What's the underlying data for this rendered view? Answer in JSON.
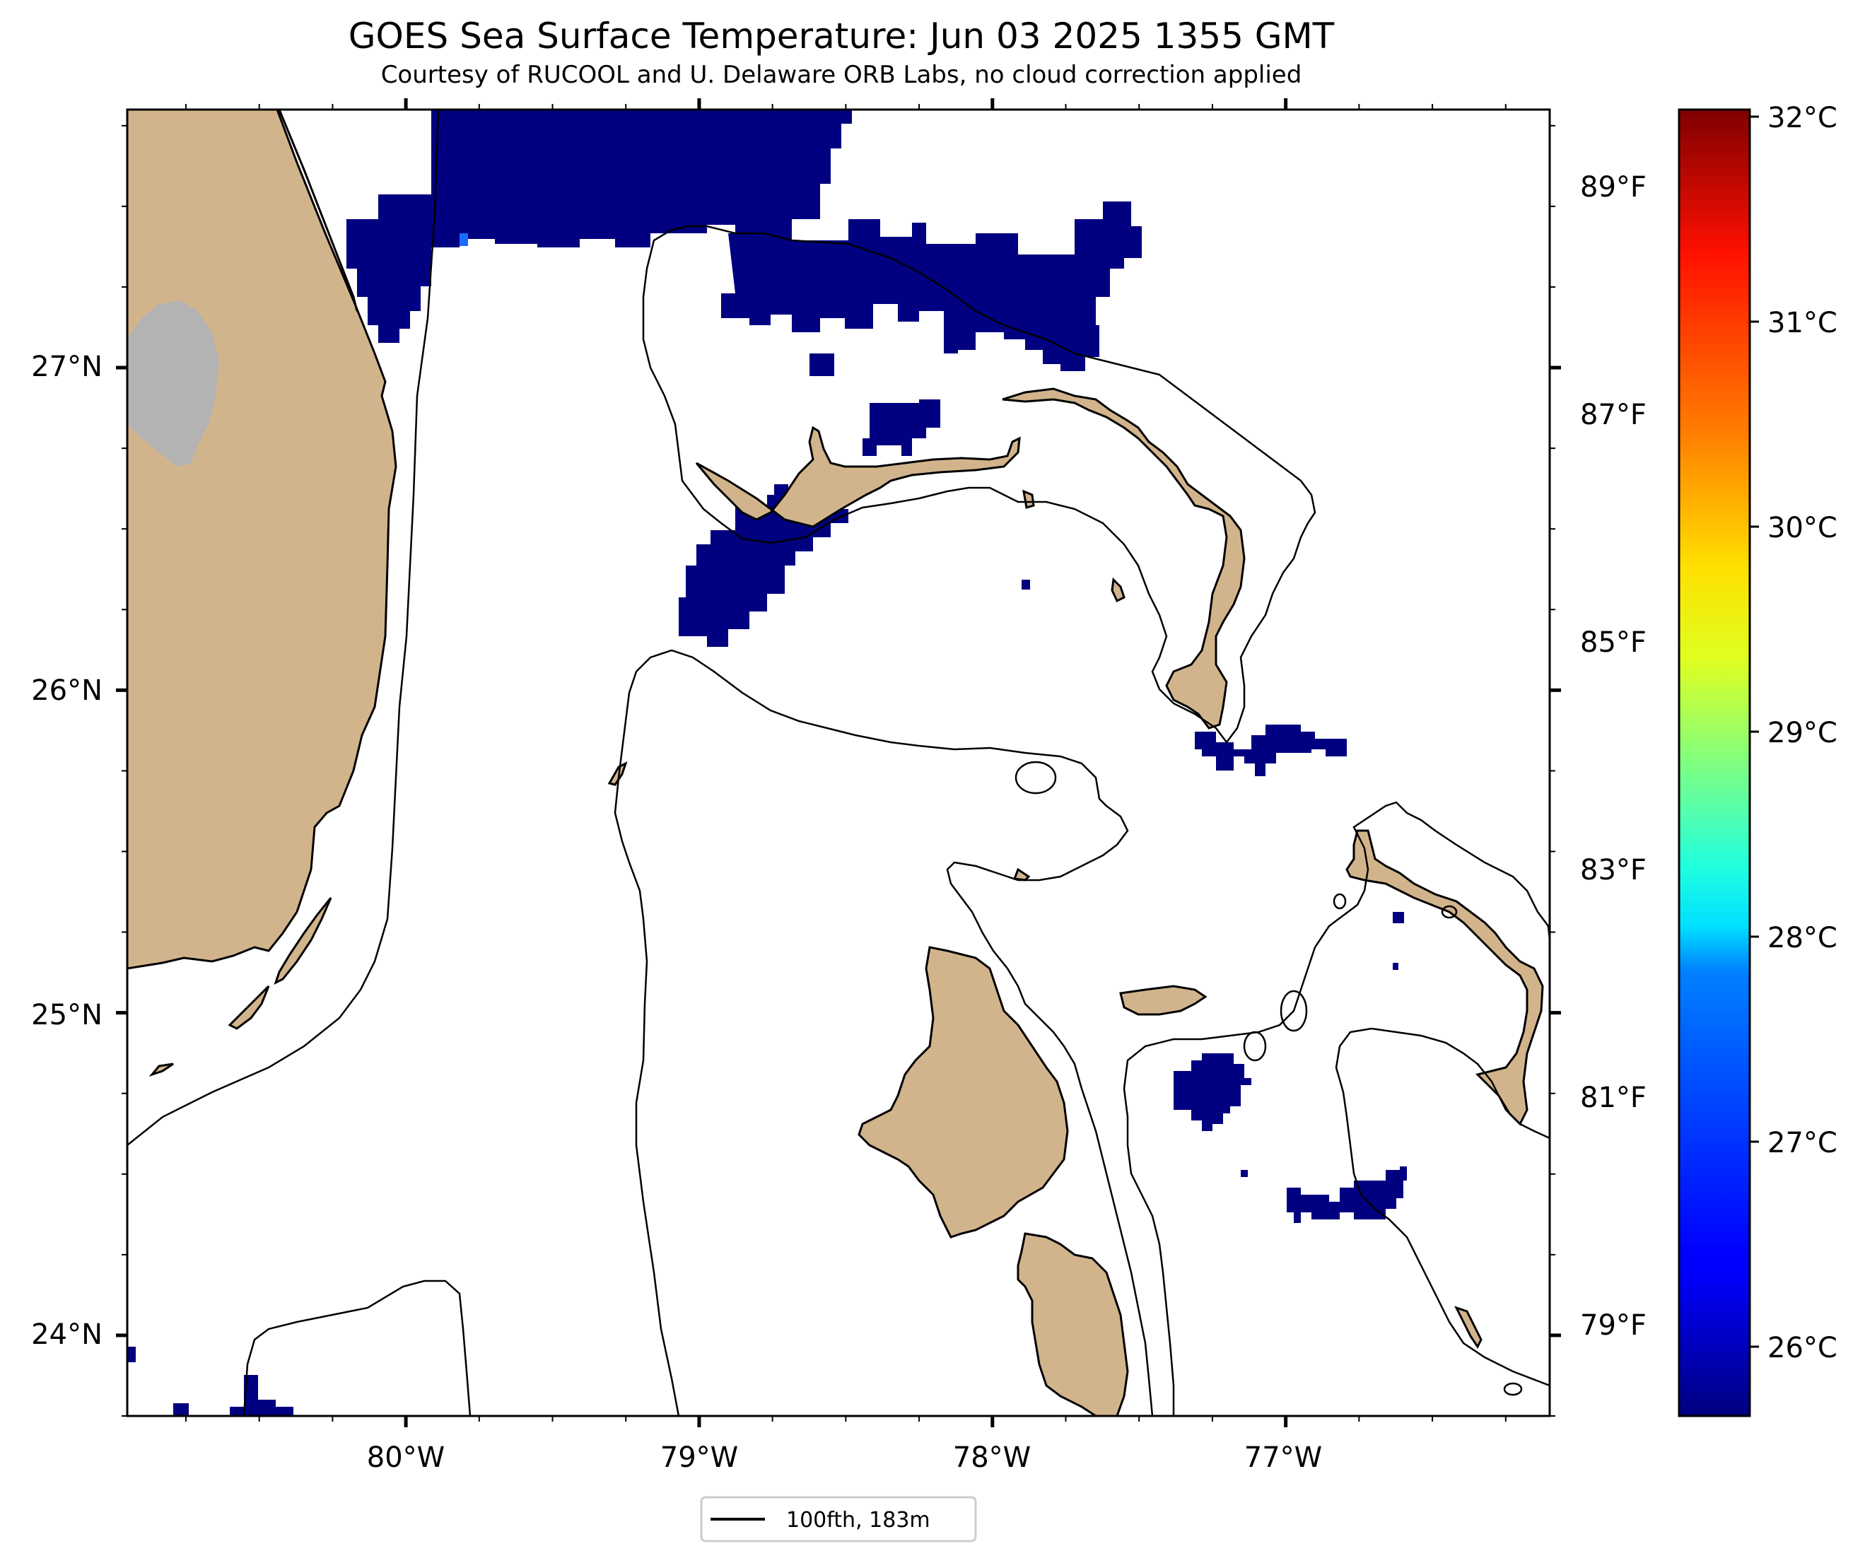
{
  "title": "GOES Sea Surface Temperature: Jun 03 2025 1355 GMT",
  "subtitle": "Courtesy of RUCOOL and U. Delaware ORB Labs, no cloud correction applied",
  "map": {
    "extent": {
      "lon_min": -80.95,
      "lon_max": -76.1,
      "lat_min": 23.75,
      "lat_max": 27.8
    },
    "lon_ticks": [
      {
        "lon": -80,
        "label": "80°W"
      },
      {
        "lon": -79,
        "label": "79°W"
      },
      {
        "lon": -78,
        "label": "78°W"
      },
      {
        "lon": -77,
        "label": "77°W"
      }
    ],
    "lat_ticks": [
      {
        "lat": 27,
        "label": "27°N"
      },
      {
        "lat": 26,
        "label": "26°N"
      },
      {
        "lat": 25,
        "label": "25°N"
      },
      {
        "lat": 24,
        "label": "24°N"
      }
    ],
    "land_color": "#d2b48c",
    "nodata_color": "#b3b3b3",
    "cold_sst_color": "#000080"
  },
  "colorbar": {
    "celsius": [
      {
        "value": 32,
        "label": "32°C"
      },
      {
        "value": 31,
        "label": "31°C"
      },
      {
        "value": 30,
        "label": "30°C"
      },
      {
        "value": 29,
        "label": "29°C"
      },
      {
        "value": 28,
        "label": "28°C"
      },
      {
        "value": 27,
        "label": "27°C"
      },
      {
        "value": 26,
        "label": "26°C"
      }
    ],
    "fahrenheit": [
      {
        "value": 89,
        "label": "89°F"
      },
      {
        "value": 87,
        "label": "87°F"
      },
      {
        "value": 85,
        "label": "85°F"
      },
      {
        "value": 83,
        "label": "83°F"
      },
      {
        "value": 81,
        "label": "81°F"
      },
      {
        "value": 79,
        "label": "79°F"
      }
    ],
    "min_c": 25.6,
    "max_c": 32.1,
    "colormap": "jet"
  },
  "legend": {
    "label": "100fth, 183m"
  }
}
